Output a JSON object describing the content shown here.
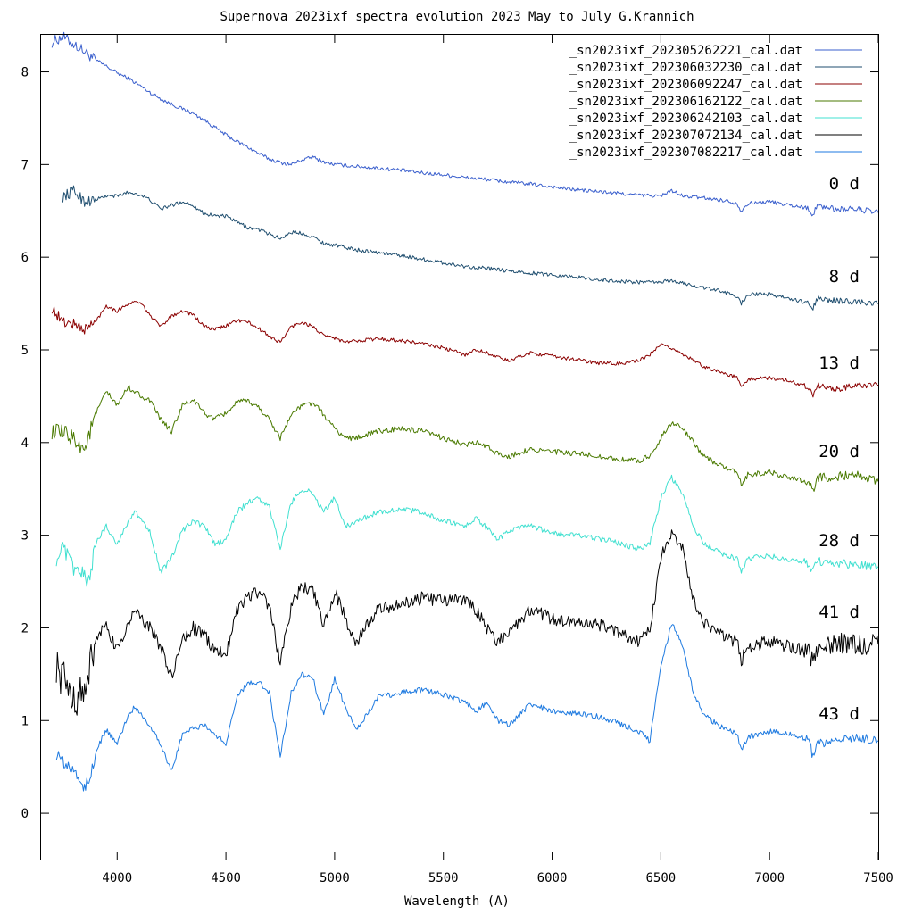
{
  "chart_data": {
    "type": "line",
    "title": "Supernova 2023ixf spectra evolution 2023 May to July  G.Krannich",
    "xlabel": "Wavelength (A)",
    "ylabel": "",
    "xlim": [
      3650,
      7500
    ],
    "ylim": [
      -0.5,
      8.4
    ],
    "x_ticks": [
      "4000",
      "4500",
      "5000",
      "5500",
      "6000",
      "6500",
      "7000",
      "7500"
    ],
    "y_ticks": [
      "0",
      "1",
      "2",
      "3",
      "4",
      "5",
      "6",
      "7",
      "8"
    ],
    "legend_position": "top-right",
    "grid": false,
    "series": [
      {
        "name": "_sn2023ixf_202305262221_cal.dat",
        "color": "#3a5fcd",
        "label": "0 d",
        "x": [
          3700,
          3750,
          3800,
          3850,
          3900,
          3950,
          4000,
          4050,
          4100,
          4150,
          4200,
          4250,
          4300,
          4350,
          4400,
          4450,
          4500,
          4550,
          4600,
          4650,
          4700,
          4750,
          4800,
          4850,
          4900,
          4950,
          5000,
          5100,
          5200,
          5300,
          5400,
          5500,
          5600,
          5700,
          5800,
          5900,
          6000,
          6100,
          6200,
          6300,
          6400,
          6500,
          6550,
          6600,
          6700,
          6800,
          6850,
          6870,
          6900,
          7000,
          7100,
          7180,
          7200,
          7220,
          7300,
          7400,
          7500
        ],
        "y": [
          8.32,
          8.38,
          8.3,
          8.22,
          8.13,
          8.06,
          7.99,
          7.93,
          7.86,
          7.78,
          7.71,
          7.65,
          7.6,
          7.55,
          7.48,
          7.4,
          7.32,
          7.25,
          7.19,
          7.12,
          7.06,
          7.02,
          7.0,
          7.05,
          7.08,
          7.03,
          7.0,
          6.98,
          6.96,
          6.94,
          6.91,
          6.89,
          6.86,
          6.84,
          6.81,
          6.79,
          6.76,
          6.73,
          6.71,
          6.69,
          6.67,
          6.66,
          6.72,
          6.66,
          6.64,
          6.61,
          6.58,
          6.5,
          6.58,
          6.6,
          6.56,
          6.53,
          6.45,
          6.56,
          6.52,
          6.52,
          6.48
        ]
      },
      {
        "name": "_sn2023ixf_202306032230_cal.dat",
        "color": "#1f4e6f",
        "label": "8 d",
        "x": [
          3750,
          3800,
          3850,
          3900,
          3950,
          4000,
          4050,
          4100,
          4150,
          4200,
          4250,
          4300,
          4350,
          4400,
          4450,
          4500,
          4550,
          4600,
          4650,
          4700,
          4750,
          4800,
          4850,
          4900,
          4950,
          5000,
          5100,
          5200,
          5300,
          5400,
          5500,
          5600,
          5700,
          5800,
          5900,
          6000,
          6100,
          6200,
          6300,
          6400,
          6500,
          6550,
          6600,
          6700,
          6800,
          6850,
          6870,
          6900,
          7000,
          7100,
          7180,
          7200,
          7220,
          7300,
          7400,
          7500
        ],
        "y": [
          6.65,
          6.72,
          6.6,
          6.62,
          6.66,
          6.66,
          6.7,
          6.68,
          6.62,
          6.52,
          6.56,
          6.6,
          6.56,
          6.47,
          6.45,
          6.44,
          6.38,
          6.32,
          6.3,
          6.25,
          6.2,
          6.27,
          6.26,
          6.22,
          6.15,
          6.13,
          6.08,
          6.05,
          6.02,
          5.98,
          5.94,
          5.9,
          5.88,
          5.85,
          5.83,
          5.81,
          5.79,
          5.76,
          5.74,
          5.73,
          5.73,
          5.75,
          5.72,
          5.67,
          5.62,
          5.58,
          5.5,
          5.6,
          5.6,
          5.55,
          5.5,
          5.45,
          5.55,
          5.53,
          5.52,
          5.5
        ]
      },
      {
        "name": "_sn2023ixf_202306092247_cal.dat",
        "color": "#8b0000",
        "label": "13 d",
        "x": [
          3700,
          3750,
          3800,
          3850,
          3900,
          3950,
          4000,
          4050,
          4100,
          4150,
          4200,
          4250,
          4300,
          4350,
          4400,
          4450,
          4500,
          4550,
          4600,
          4650,
          4700,
          4750,
          4800,
          4850,
          4900,
          4950,
          5000,
          5050,
          5100,
          5200,
          5300,
          5400,
          5500,
          5600,
          5650,
          5700,
          5750,
          5800,
          5900,
          6000,
          6100,
          6200,
          6300,
          6400,
          6450,
          6500,
          6550,
          6600,
          6650,
          6700,
          6800,
          6850,
          6870,
          6900,
          7000,
          7100,
          7180,
          7200,
          7220,
          7300,
          7400,
          7500
        ],
        "y": [
          5.45,
          5.3,
          5.28,
          5.22,
          5.3,
          5.48,
          5.42,
          5.5,
          5.52,
          5.38,
          5.25,
          5.37,
          5.42,
          5.38,
          5.25,
          5.22,
          5.26,
          5.32,
          5.3,
          5.23,
          5.15,
          5.08,
          5.25,
          5.3,
          5.25,
          5.15,
          5.13,
          5.08,
          5.1,
          5.12,
          5.1,
          5.07,
          5.02,
          4.95,
          5.0,
          4.97,
          4.92,
          4.88,
          4.97,
          4.93,
          4.9,
          4.86,
          4.85,
          4.88,
          4.95,
          5.05,
          5.02,
          4.96,
          4.88,
          4.82,
          4.74,
          4.7,
          4.6,
          4.68,
          4.7,
          4.66,
          4.6,
          4.52,
          4.62,
          4.57,
          4.62,
          4.62
        ]
      },
      {
        "name": "_sn2023ixf_202306162122_cal.dat",
        "color": "#4a7a00",
        "label": "20 d",
        "x": [
          3700,
          3750,
          3800,
          3850,
          3900,
          3950,
          4000,
          4050,
          4100,
          4150,
          4200,
          4250,
          4300,
          4350,
          4400,
          4450,
          4500,
          4550,
          4600,
          4650,
          4700,
          4750,
          4800,
          4850,
          4900,
          4950,
          5000,
          5050,
          5100,
          5200,
          5300,
          5400,
          5500,
          5600,
          5650,
          5700,
          5750,
          5800,
          5900,
          6000,
          6100,
          6200,
          6300,
          6400,
          6450,
          6500,
          6550,
          6600,
          6650,
          6700,
          6800,
          6850,
          6870,
          6900,
          7000,
          7100,
          7180,
          7200,
          7220,
          7300,
          7400,
          7500
        ],
        "y": [
          4.12,
          4.1,
          4.05,
          3.92,
          4.3,
          4.55,
          4.4,
          4.6,
          4.52,
          4.45,
          4.25,
          4.12,
          4.4,
          4.46,
          4.32,
          4.25,
          4.32,
          4.43,
          4.45,
          4.38,
          4.25,
          4.05,
          4.3,
          4.4,
          4.43,
          4.3,
          4.15,
          4.05,
          4.05,
          4.12,
          4.15,
          4.12,
          4.05,
          3.97,
          4.0,
          3.95,
          3.88,
          3.85,
          3.93,
          3.9,
          3.88,
          3.86,
          3.82,
          3.8,
          3.86,
          4.05,
          4.22,
          4.15,
          4.0,
          3.85,
          3.72,
          3.67,
          3.55,
          3.65,
          3.68,
          3.62,
          3.58,
          3.48,
          3.62,
          3.63,
          3.66,
          3.58
        ]
      },
      {
        "name": "_sn2023ixf_202306242103_cal.dat",
        "color": "#40e0d0",
        "label": "28 d",
        "x": [
          3720,
          3750,
          3800,
          3850,
          3870,
          3900,
          3950,
          4000,
          4050,
          4080,
          4100,
          4150,
          4200,
          4250,
          4300,
          4350,
          4400,
          4450,
          4500,
          4550,
          4600,
          4650,
          4700,
          4750,
          4800,
          4850,
          4900,
          4950,
          5000,
          5050,
          5100,
          5200,
          5300,
          5400,
          5500,
          5600,
          5650,
          5700,
          5750,
          5800,
          5900,
          6000,
          6100,
          6200,
          6300,
          6400,
          6450,
          6500,
          6550,
          6600,
          6650,
          6700,
          6800,
          6850,
          6870,
          6900,
          7000,
          7100,
          7180,
          7200,
          7220,
          7300,
          7400,
          7500
        ],
        "y": [
          2.75,
          2.85,
          2.65,
          2.55,
          2.5,
          2.9,
          3.1,
          2.9,
          3.15,
          3.25,
          3.2,
          3.05,
          2.6,
          2.75,
          3.05,
          3.15,
          3.1,
          2.9,
          2.95,
          3.25,
          3.35,
          3.4,
          3.3,
          2.85,
          3.35,
          3.5,
          3.45,
          3.25,
          3.4,
          3.1,
          3.15,
          3.25,
          3.28,
          3.25,
          3.15,
          3.1,
          3.18,
          3.08,
          2.95,
          3.05,
          3.1,
          3.02,
          3.0,
          2.97,
          2.92,
          2.85,
          2.92,
          3.4,
          3.62,
          3.45,
          3.1,
          2.9,
          2.78,
          2.75,
          2.6,
          2.75,
          2.78,
          2.72,
          2.7,
          2.6,
          2.72,
          2.7,
          2.68,
          2.66
        ]
      },
      {
        "name": "_sn2023ixf_202307072134_cal.dat",
        "color": "#000000",
        "label": "41 d",
        "x": [
          3720,
          3750,
          3800,
          3850,
          3870,
          3900,
          3950,
          4000,
          4050,
          4080,
          4100,
          4150,
          4200,
          4250,
          4300,
          4350,
          4400,
          4450,
          4500,
          4550,
          4600,
          4650,
          4700,
          4750,
          4800,
          4850,
          4900,
          4950,
          5000,
          5050,
          5100,
          5200,
          5300,
          5400,
          5500,
          5600,
          5650,
          5700,
          5750,
          5800,
          5900,
          6000,
          6100,
          6200,
          6300,
          6400,
          6450,
          6500,
          6550,
          6600,
          6650,
          6700,
          6800,
          6850,
          6870,
          6900,
          7000,
          7100,
          7180,
          7200,
          7220,
          7300,
          7400,
          7500
        ],
        "y": [
          1.6,
          1.45,
          1.25,
          1.3,
          1.5,
          1.9,
          2.0,
          1.75,
          2.05,
          2.18,
          2.12,
          2.0,
          1.8,
          1.45,
          1.88,
          2.0,
          1.92,
          1.75,
          1.72,
          2.2,
          2.35,
          2.38,
          2.25,
          1.6,
          2.25,
          2.45,
          2.4,
          2.0,
          2.4,
          2.1,
          1.85,
          2.2,
          2.25,
          2.32,
          2.3,
          2.3,
          2.2,
          2.0,
          1.85,
          1.95,
          2.2,
          2.1,
          2.05,
          2.05,
          1.95,
          1.85,
          2.0,
          2.75,
          3.05,
          2.85,
          2.3,
          2.05,
          1.9,
          1.85,
          1.65,
          1.8,
          1.85,
          1.8,
          1.75,
          1.65,
          1.78,
          1.85,
          1.82,
          1.82
        ]
      },
      {
        "name": "_sn2023ixf_202307082217_cal.dat",
        "color": "#1e7ae0",
        "label": "43 d",
        "x": [
          3720,
          3750,
          3800,
          3850,
          3870,
          3900,
          3950,
          4000,
          4050,
          4080,
          4100,
          4150,
          4200,
          4250,
          4300,
          4350,
          4400,
          4450,
          4500,
          4550,
          4600,
          4650,
          4700,
          4750,
          4800,
          4850,
          4900,
          4950,
          5000,
          5050,
          5100,
          5200,
          5300,
          5400,
          5500,
          5600,
          5650,
          5700,
          5750,
          5800,
          5900,
          6000,
          6100,
          6200,
          6300,
          6400,
          6450,
          6500,
          6550,
          6600,
          6650,
          6700,
          6800,
          6850,
          6870,
          6900,
          7000,
          7100,
          7180,
          7200,
          7220,
          7300,
          7400,
          7500
        ],
        "y": [
          0.65,
          0.55,
          0.45,
          0.3,
          0.3,
          0.65,
          0.9,
          0.75,
          1.05,
          1.15,
          1.1,
          0.95,
          0.75,
          0.45,
          0.85,
          0.92,
          0.95,
          0.85,
          0.75,
          1.25,
          1.4,
          1.42,
          1.3,
          0.6,
          1.3,
          1.5,
          1.45,
          1.05,
          1.45,
          1.15,
          0.9,
          1.25,
          1.3,
          1.33,
          1.28,
          1.2,
          1.1,
          1.2,
          1.0,
          0.95,
          1.18,
          1.1,
          1.08,
          1.05,
          0.98,
          0.88,
          0.78,
          1.6,
          2.05,
          1.8,
          1.3,
          1.05,
          0.9,
          0.85,
          0.68,
          0.82,
          0.88,
          0.85,
          0.8,
          0.6,
          0.75,
          0.78,
          0.82,
          0.78
        ]
      }
    ]
  }
}
